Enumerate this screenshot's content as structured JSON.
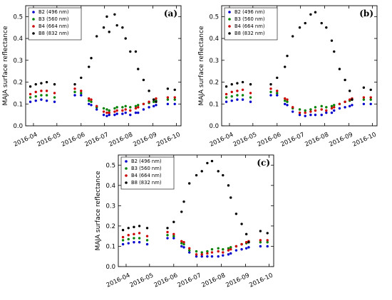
{
  "chart_data": [
    {
      "type": "scatter",
      "panel_label": "(a)",
      "ylabel": "MAJA surface reflectance",
      "xlabel": "",
      "ylim": [
        0.0,
        0.55
      ],
      "xlim": [
        "2016-03-22",
        "2016-10-07"
      ],
      "y_ticks": [
        "0.0",
        "0.1",
        "0.2",
        "0.3",
        "0.4",
        "0.5"
      ],
      "x_ticks": [
        {
          "date": "2016-04-01",
          "label": "2016-04"
        },
        {
          "date": "2016-05-01",
          "label": "2016-05"
        },
        {
          "date": "2016-06-01",
          "label": "2016-06"
        },
        {
          "date": "2016-07-01",
          "label": "2016-07"
        },
        {
          "date": "2016-08-01",
          "label": "2016-08"
        },
        {
          "date": "2016-09-01",
          "label": "2016-09"
        },
        {
          "date": "2016-10-01",
          "label": "2016-10"
        }
      ],
      "legend_position": "top-left",
      "x": [
        "2016-03-28",
        "2016-04-04",
        "2016-04-11",
        "2016-04-18",
        "2016-04-28",
        "2016-05-24",
        "2016-06-01",
        "2016-06-11",
        "2016-06-14",
        "2016-06-21",
        "2016-06-30",
        "2016-07-04",
        "2016-07-07",
        "2016-07-14",
        "2016-07-17",
        "2016-07-24",
        "2016-07-28",
        "2016-08-03",
        "2016-08-10",
        "2016-08-13",
        "2016-08-20",
        "2016-08-27",
        "2016-09-02",
        "2016-09-05",
        "2016-09-20",
        "2016-09-29"
      ],
      "series": [
        {
          "name": "B2 (496 nm)",
          "color": "#0000cc",
          "values": [
            0.11,
            0.115,
            0.12,
            0.115,
            0.11,
            0.14,
            0.14,
            0.1,
            0.095,
            0.075,
            0.05,
            0.045,
            0.05,
            0.05,
            0.055,
            0.055,
            0.06,
            0.05,
            0.06,
            0.06,
            0.075,
            0.085,
            0.09,
            0.095,
            0.1,
            0.1
          ]
        },
        {
          "name": "B3 (560 nm)",
          "color": "#008000",
          "values": [
            0.13,
            0.135,
            0.14,
            0.14,
            0.13,
            0.155,
            0.15,
            0.115,
            0.11,
            0.085,
            0.08,
            0.075,
            0.07,
            0.08,
            0.085,
            0.085,
            0.09,
            0.085,
            0.09,
            0.095,
            0.1,
            0.105,
            0.11,
            0.115,
            0.12,
            0.12
          ]
        },
        {
          "name": "B4 (664 nm)",
          "color": "#cc0000",
          "values": [
            0.145,
            0.155,
            0.16,
            0.16,
            0.15,
            0.17,
            0.16,
            0.125,
            0.12,
            0.09,
            0.065,
            0.06,
            0.06,
            0.065,
            0.07,
            0.07,
            0.075,
            0.07,
            0.08,
            0.085,
            0.1,
            0.11,
            0.12,
            0.125,
            0.13,
            0.13
          ]
        },
        {
          "name": "B8 (832 nm)",
          "color": "#000000",
          "values": [
            0.18,
            0.19,
            0.195,
            0.2,
            0.19,
            0.19,
            0.22,
            0.27,
            0.31,
            0.41,
            0.45,
            0.5,
            0.43,
            0.51,
            0.46,
            0.45,
            0.4,
            0.34,
            0.34,
            0.26,
            0.21,
            0.16,
            0.12,
            0.11,
            0.17,
            0.165
          ]
        }
      ]
    },
    {
      "type": "scatter",
      "panel_label": "(b)",
      "ylabel": "MAJA surface reflectance",
      "xlabel": "",
      "ylim": [
        0.0,
        0.55
      ],
      "xlim": [
        "2016-03-22",
        "2016-10-07"
      ],
      "y_ticks": [
        "0.0",
        "0.1",
        "0.2",
        "0.3",
        "0.4",
        "0.5"
      ],
      "x_ticks": [
        {
          "date": "2016-04-01",
          "label": "2016-04"
        },
        {
          "date": "2016-05-01",
          "label": "2016-05"
        },
        {
          "date": "2016-06-01",
          "label": "2016-06"
        },
        {
          "date": "2016-07-01",
          "label": "2016-07"
        },
        {
          "date": "2016-08-01",
          "label": "2016-08"
        },
        {
          "date": "2016-09-01",
          "label": "2016-09"
        },
        {
          "date": "2016-10-01",
          "label": "2016-10"
        }
      ],
      "legend_position": "top-left",
      "x": [
        "2016-03-28",
        "2016-04-04",
        "2016-04-11",
        "2016-04-18",
        "2016-04-28",
        "2016-05-24",
        "2016-06-01",
        "2016-06-11",
        "2016-06-14",
        "2016-06-21",
        "2016-06-30",
        "2016-07-07",
        "2016-07-14",
        "2016-07-20",
        "2016-07-28",
        "2016-08-03",
        "2016-08-10",
        "2016-08-13",
        "2016-08-20",
        "2016-08-27",
        "2016-09-02",
        "2016-09-05",
        "2016-09-20",
        "2016-09-29"
      ],
      "series": [
        {
          "name": "B2 (496 nm)",
          "color": "#0000cc",
          "values": [
            0.11,
            0.115,
            0.12,
            0.12,
            0.11,
            0.14,
            0.14,
            0.1,
            0.095,
            0.065,
            0.05,
            0.045,
            0.05,
            0.05,
            0.05,
            0.06,
            0.06,
            0.07,
            0.08,
            0.085,
            0.09,
            0.095,
            0.1,
            0.1
          ]
        },
        {
          "name": "B3 (560 nm)",
          "color": "#008000",
          "values": [
            0.13,
            0.135,
            0.14,
            0.14,
            0.13,
            0.155,
            0.15,
            0.115,
            0.11,
            0.08,
            0.075,
            0.07,
            0.075,
            0.085,
            0.09,
            0.085,
            0.09,
            0.095,
            0.1,
            0.11,
            0.115,
            0.12,
            0.12,
            0.12
          ]
        },
        {
          "name": "B4 (664 nm)",
          "color": "#cc0000",
          "values": [
            0.145,
            0.155,
            0.16,
            0.165,
            0.15,
            0.17,
            0.16,
            0.125,
            0.12,
            0.085,
            0.06,
            0.06,
            0.065,
            0.07,
            0.075,
            0.07,
            0.08,
            0.085,
            0.1,
            0.11,
            0.12,
            0.125,
            0.13,
            0.13
          ]
        },
        {
          "name": "B8 (832 nm)",
          "color": "#000000",
          "values": [
            0.18,
            0.19,
            0.195,
            0.2,
            0.19,
            0.19,
            0.22,
            0.27,
            0.32,
            0.41,
            0.45,
            0.47,
            0.51,
            0.52,
            0.47,
            0.45,
            0.39,
            0.34,
            0.26,
            0.21,
            0.16,
            0.12,
            0.175,
            0.165
          ]
        }
      ]
    },
    {
      "type": "scatter",
      "panel_label": "(c)",
      "ylabel": "MAJA surface reflectance",
      "xlabel": "",
      "ylim": [
        0.0,
        0.55
      ],
      "xlim": [
        "2016-03-22",
        "2016-10-07"
      ],
      "y_ticks": [
        "0.0",
        "0.1",
        "0.2",
        "0.3",
        "0.4",
        "0.5"
      ],
      "x_ticks": [
        {
          "date": "2016-04-01",
          "label": "2016-04"
        },
        {
          "date": "2016-05-01",
          "label": "2016-05"
        },
        {
          "date": "2016-06-01",
          "label": "2016-06"
        },
        {
          "date": "2016-07-01",
          "label": "2016-07"
        },
        {
          "date": "2016-08-01",
          "label": "2016-08"
        },
        {
          "date": "2016-09-01",
          "label": "2016-09"
        },
        {
          "date": "2016-10-01",
          "label": "2016-10"
        }
      ],
      "legend_position": "top-left",
      "x": [
        "2016-03-28",
        "2016-04-04",
        "2016-04-11",
        "2016-04-18",
        "2016-04-28",
        "2016-05-24",
        "2016-06-01",
        "2016-06-11",
        "2016-06-14",
        "2016-06-21",
        "2016-06-30",
        "2016-07-07",
        "2016-07-14",
        "2016-07-20",
        "2016-07-28",
        "2016-08-03",
        "2016-08-10",
        "2016-08-13",
        "2016-08-20",
        "2016-08-27",
        "2016-09-02",
        "2016-09-05",
        "2016-09-20",
        "2016-09-29"
      ],
      "series": [
        {
          "name": "B2 (496 nm)",
          "color": "#0000cc",
          "values": [
            0.11,
            0.115,
            0.12,
            0.12,
            0.11,
            0.14,
            0.14,
            0.1,
            0.095,
            0.07,
            0.05,
            0.05,
            0.05,
            0.05,
            0.05,
            0.055,
            0.06,
            0.065,
            0.08,
            0.085,
            0.09,
            0.095,
            0.1,
            0.1
          ]
        },
        {
          "name": "B3 (560 nm)",
          "color": "#008000",
          "values": [
            0.13,
            0.135,
            0.14,
            0.14,
            0.13,
            0.155,
            0.15,
            0.115,
            0.11,
            0.08,
            0.075,
            0.07,
            0.075,
            0.085,
            0.09,
            0.085,
            0.09,
            0.095,
            0.1,
            0.11,
            0.115,
            0.12,
            0.12,
            0.12
          ]
        },
        {
          "name": "B4 (664 nm)",
          "color": "#cc0000",
          "values": [
            0.145,
            0.155,
            0.16,
            0.165,
            0.15,
            0.17,
            0.16,
            0.125,
            0.12,
            0.09,
            0.06,
            0.06,
            0.065,
            0.07,
            0.075,
            0.07,
            0.08,
            0.085,
            0.1,
            0.11,
            0.12,
            0.125,
            0.13,
            0.13
          ]
        },
        {
          "name": "B8 (832 nm)",
          "color": "#000000",
          "values": [
            0.18,
            0.19,
            0.195,
            0.2,
            0.19,
            0.19,
            0.22,
            0.27,
            0.32,
            0.41,
            0.45,
            0.47,
            0.51,
            0.52,
            0.47,
            0.45,
            0.4,
            0.34,
            0.26,
            0.21,
            0.16,
            0.12,
            0.175,
            0.165
          ]
        }
      ]
    }
  ]
}
